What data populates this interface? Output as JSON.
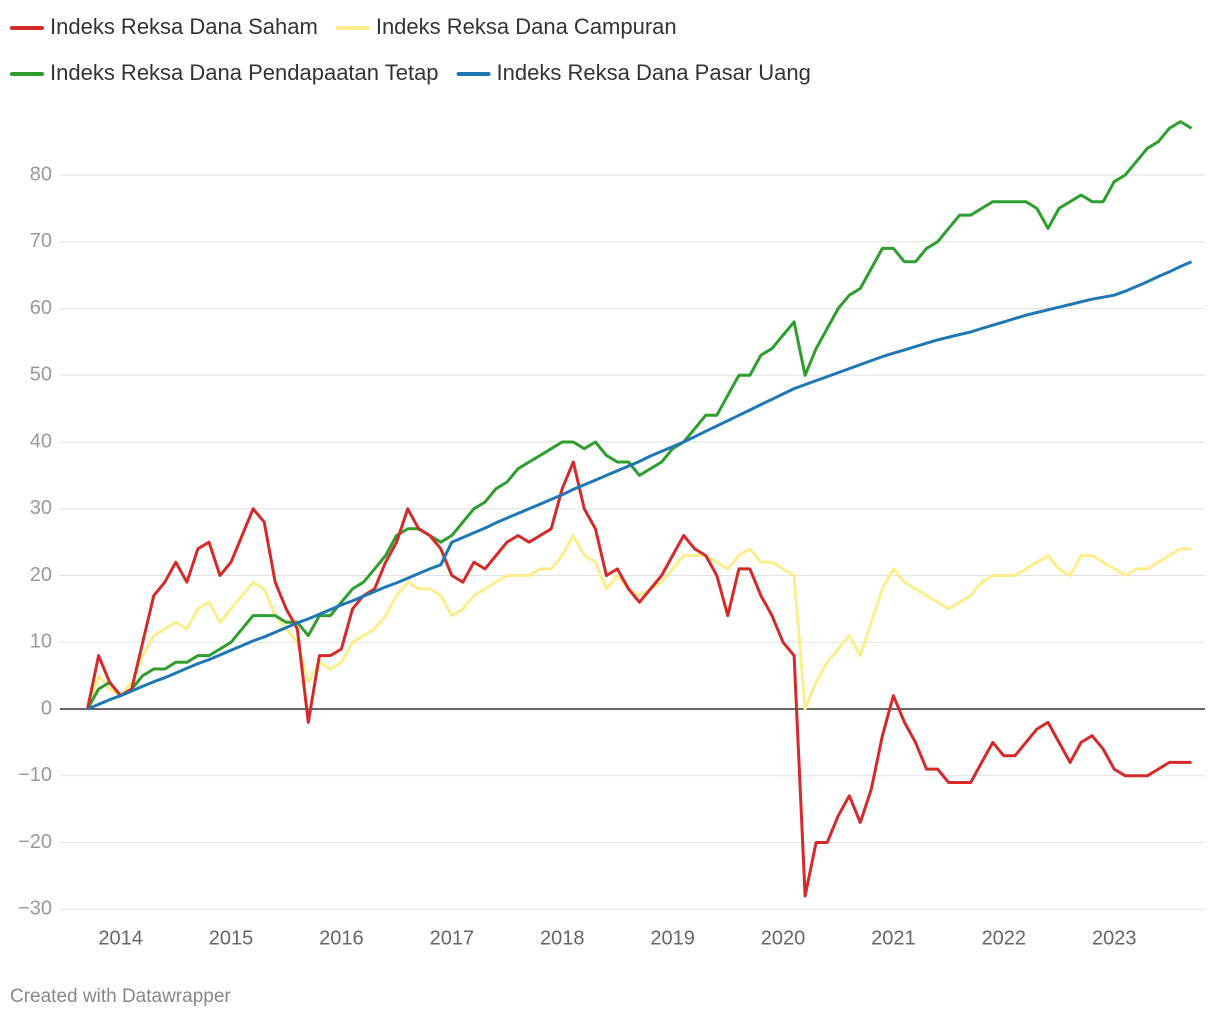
{
  "chart_data": {
    "type": "line",
    "footer": "Created with Datawrapper",
    "x": [
      2013.7,
      2013.8,
      2013.9,
      2014.0,
      2014.1,
      2014.2,
      2014.3,
      2014.4,
      2014.5,
      2014.6,
      2014.7,
      2014.8,
      2014.9,
      2015.0,
      2015.1,
      2015.2,
      2015.3,
      2015.4,
      2015.5,
      2015.6,
      2015.7,
      2015.8,
      2015.9,
      2016.0,
      2016.1,
      2016.2,
      2016.3,
      2016.4,
      2016.5,
      2016.6,
      2016.7,
      2016.8,
      2016.9,
      2017.0,
      2017.1,
      2017.2,
      2017.3,
      2017.4,
      2017.5,
      2017.6,
      2017.7,
      2017.8,
      2017.9,
      2018.0,
      2018.1,
      2018.2,
      2018.3,
      2018.4,
      2018.5,
      2018.6,
      2018.7,
      2018.8,
      2018.9,
      2019.0,
      2019.1,
      2019.2,
      2019.3,
      2019.4,
      2019.5,
      2019.6,
      2019.7,
      2019.8,
      2019.9,
      2020.0,
      2020.1,
      2020.2,
      2020.3,
      2020.4,
      2020.5,
      2020.6,
      2020.7,
      2020.8,
      2020.9,
      2021.0,
      2021.1,
      2021.2,
      2021.3,
      2021.4,
      2021.5,
      2021.6,
      2021.7,
      2021.8,
      2021.9,
      2022.0,
      2022.1,
      2022.2,
      2022.3,
      2022.4,
      2022.5,
      2022.6,
      2022.7,
      2022.8,
      2022.9,
      2023.0,
      2023.1,
      2023.2,
      2023.3,
      2023.4,
      2023.5,
      2023.6,
      2023.7
    ],
    "series": [
      {
        "name": "Indeks Reksa Dana Saham",
        "color": "#d42a2a",
        "values": [
          0,
          8,
          4,
          2,
          3,
          10,
          17,
          19,
          22,
          19,
          24,
          25,
          20,
          22,
          26,
          30,
          28,
          19,
          15,
          12,
          -2,
          8,
          8,
          9,
          15,
          17,
          18,
          22,
          25,
          30,
          27,
          26,
          24,
          20,
          19,
          22,
          21,
          23,
          25,
          26,
          25,
          26,
          27,
          33,
          37,
          30,
          27,
          20,
          21,
          18,
          16,
          18,
          20,
          23,
          26,
          24,
          23,
          20,
          14,
          21,
          21,
          17,
          14,
          10,
          8,
          -28,
          -20,
          -20,
          -16,
          -13,
          -17,
          -12,
          -4,
          2,
          -2,
          -5,
          -9,
          -9,
          -11,
          -11,
          -11,
          -8,
          -5,
          -7,
          -7,
          -5,
          -3,
          -2,
          -5,
          -8,
          -5,
          -4,
          -6,
          -9,
          -10,
          -10,
          -10,
          -9,
          -8,
          -8,
          -8
        ]
      },
      {
        "name": "Indeks Reksa Dana Campuran",
        "color": "#fdee8c",
        "values": [
          0,
          5,
          3,
          2,
          4,
          8,
          11,
          12,
          13,
          12,
          15,
          16,
          13,
          15,
          17,
          19,
          18,
          14,
          12,
          10,
          4,
          7,
          6,
          7,
          10,
          11,
          12,
          14,
          17,
          19,
          18,
          18,
          17,
          14,
          15,
          17,
          18,
          19,
          20,
          20,
          20,
          21,
          21,
          23,
          26,
          23,
          22,
          18,
          20,
          18,
          17,
          18,
          19,
          21,
          23,
          23,
          23,
          22,
          21,
          23,
          24,
          22,
          22,
          21,
          20,
          0,
          4,
          7,
          9,
          11,
          8,
          13,
          18,
          21,
          19,
          18,
          17,
          16,
          15,
          16,
          17,
          19,
          20,
          20,
          20,
          21,
          22,
          23,
          21,
          20,
          23,
          23,
          22,
          21,
          20,
          21,
          21,
          22,
          23,
          24,
          24
        ]
      },
      {
        "name": "Indeks Reksa Dana Pendapaatan Tetap",
        "color": "#2e9e2e",
        "values": [
          0,
          3,
          4,
          2,
          3,
          5,
          6,
          6,
          7,
          7,
          8,
          8,
          9,
          10,
          12,
          14,
          14,
          14,
          13,
          13,
          11,
          14,
          14,
          16,
          18,
          19,
          21,
          23,
          26,
          27,
          27,
          26,
          25,
          26,
          28,
          30,
          31,
          33,
          34,
          36,
          37,
          38,
          39,
          40,
          40,
          39,
          40,
          38,
          37,
          37,
          35,
          36,
          37,
          39,
          40,
          42,
          44,
          44,
          47,
          50,
          50,
          53,
          54,
          56,
          58,
          50,
          54,
          57,
          60,
          62,
          63,
          66,
          69,
          69,
          67,
          67,
          69,
          70,
          72,
          74,
          74,
          75,
          76,
          76,
          76,
          76,
          75,
          72,
          75,
          76,
          77,
          76,
          76,
          79,
          80,
          82,
          84,
          85,
          87,
          88,
          87
        ]
      },
      {
        "name": "Indeks Reksa Dana Pasar Uang",
        "color": "#1f77b4",
        "values": [
          0,
          0.7,
          1.4,
          2.0,
          2.7,
          3.4,
          4.1,
          4.7,
          5.4,
          6.1,
          6.8,
          7.4,
          8.1,
          8.8,
          9.5,
          10.2,
          10.8,
          11.5,
          12.2,
          12.9,
          13.5,
          14.2,
          14.9,
          15.6,
          16.2,
          16.9,
          17.6,
          18.3,
          18.9,
          19.6,
          20.3,
          21.0,
          21.6,
          25,
          25.7,
          26.4,
          27.1,
          27.9,
          28.6,
          29.3,
          30,
          30.7,
          31.4,
          32.1,
          32.9,
          33.6,
          34.3,
          35,
          35.7,
          36.4,
          37.1,
          37.9,
          38.6,
          39.3,
          40,
          40.8,
          41.6,
          42.4,
          43.2,
          44,
          44.8,
          45.6,
          46.4,
          47.2,
          48,
          48.6,
          49.2,
          49.8,
          50.4,
          51,
          51.6,
          52.2,
          52.8,
          53.3,
          53.8,
          54.3,
          54.8,
          55.3,
          55.7,
          56.1,
          56.5,
          57,
          57.5,
          58,
          58.5,
          59,
          59.4,
          59.8,
          60.2,
          60.6,
          61,
          61.4,
          61.7,
          62,
          62.6,
          63.3,
          64,
          64.8,
          65.5,
          66.3,
          67
        ]
      }
    ],
    "xlim": [
      2013.65,
      2023.7
    ],
    "xticks": [
      2014,
      2015,
      2016,
      2017,
      2018,
      2019,
      2020,
      2021,
      2022,
      2023
    ],
    "ylim": [
      -30,
      88
    ],
    "yticks": [
      {
        "value": -30,
        "label": "−30"
      },
      {
        "value": -20,
        "label": "−20"
      },
      {
        "value": -10,
        "label": "−10"
      },
      0,
      10,
      20,
      30,
      40,
      50,
      60,
      70,
      80
    ],
    "grid": true
  }
}
